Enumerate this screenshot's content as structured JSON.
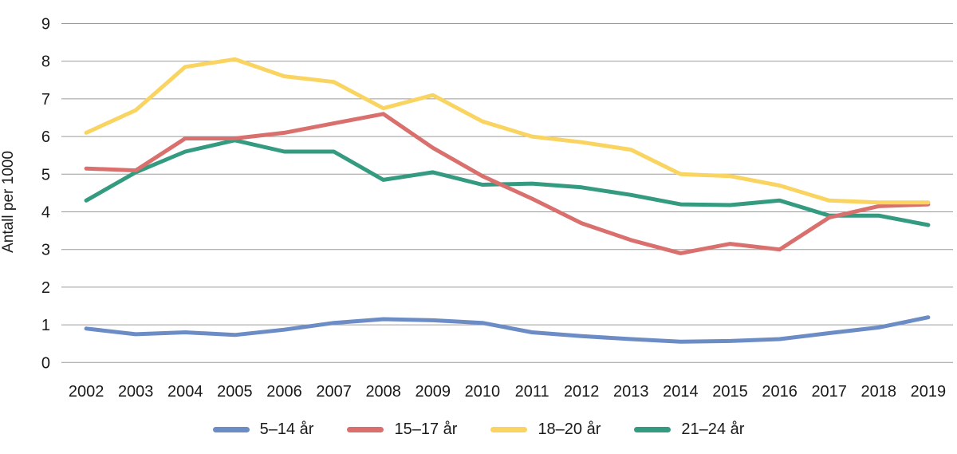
{
  "chart_data": {
    "type": "line",
    "title": "",
    "xlabel": "",
    "ylabel": "Antall per 1000",
    "ylim": [
      0,
      9
    ],
    "ytick_step": 1,
    "grid": true,
    "legend_position": "bottom",
    "categories": [
      "2002",
      "2003",
      "2004",
      "2005",
      "2006",
      "2007",
      "2008",
      "2009",
      "2010",
      "2011",
      "2012",
      "2013",
      "2014",
      "2015",
      "2016",
      "2017",
      "2018",
      "2019"
    ],
    "series": [
      {
        "name": "5–14 år",
        "color": "#6C8CC6",
        "values": [
          0.9,
          0.75,
          0.8,
          0.73,
          0.87,
          1.05,
          1.15,
          1.12,
          1.05,
          0.8,
          0.7,
          0.62,
          0.55,
          0.57,
          0.62,
          0.78,
          0.93,
          1.2
        ]
      },
      {
        "name": "15–17 år",
        "color": "#D9706D",
        "values": [
          5.15,
          5.1,
          5.95,
          5.95,
          6.1,
          6.35,
          6.6,
          5.7,
          4.95,
          4.35,
          3.7,
          3.25,
          2.9,
          3.15,
          3.0,
          3.85,
          4.15,
          4.2
        ]
      },
      {
        "name": "18–20 år",
        "color": "#FAD461",
        "values": [
          6.1,
          6.7,
          7.85,
          8.05,
          7.6,
          7.45,
          6.75,
          7.1,
          6.4,
          6.0,
          5.85,
          5.65,
          5.0,
          4.95,
          4.7,
          4.3,
          4.25,
          4.25
        ]
      },
      {
        "name": "21–24 år",
        "color": "#349B80",
        "values": [
          4.3,
          5.05,
          5.6,
          5.9,
          5.6,
          5.6,
          4.85,
          5.05,
          4.72,
          4.75,
          4.65,
          4.45,
          4.2,
          4.18,
          4.3,
          3.9,
          3.9,
          3.65
        ]
      }
    ],
    "draw_order": [
      "5–14 år",
      "21–24 år",
      "15–17 år",
      "18–20 år"
    ],
    "styles": {
      "gridline_color": "#9c9c9c",
      "text_color": "#1a1a1a",
      "background": "#ffffff"
    }
  }
}
